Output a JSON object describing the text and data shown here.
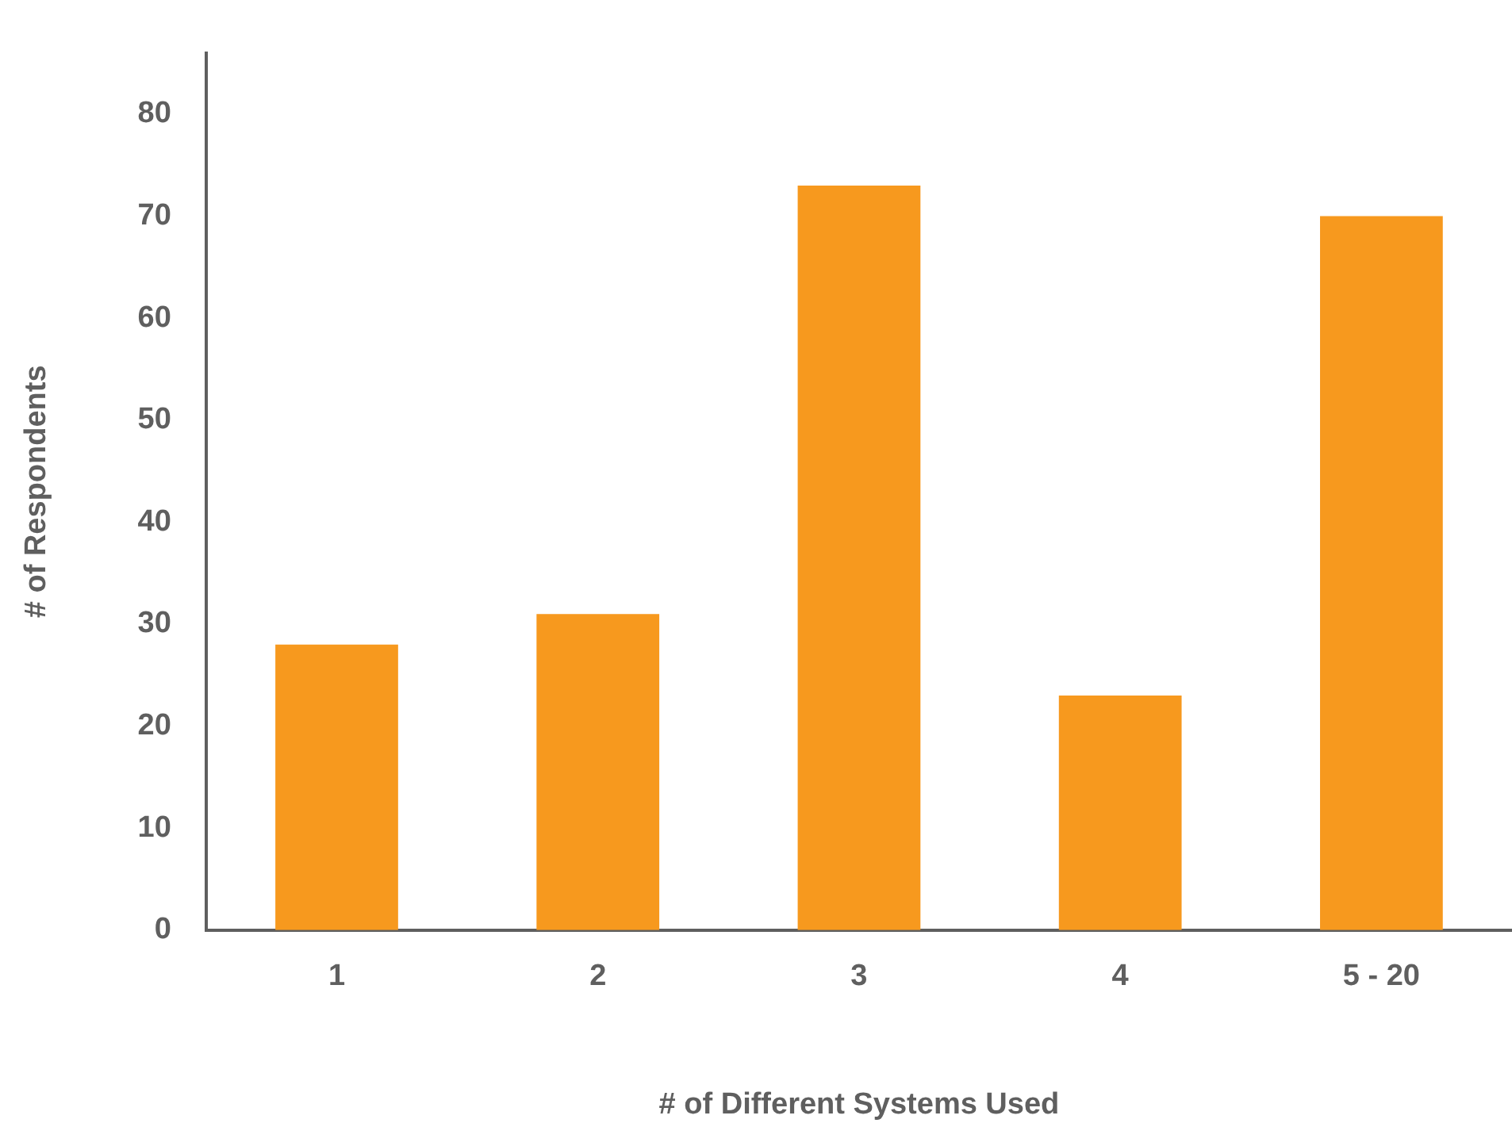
{
  "chart_data": {
    "type": "bar",
    "xlabel": "# of Different Systems Used",
    "ylabel": "# of Respondents",
    "categories": [
      "1",
      "2",
      "3",
      "4",
      "5 - 20"
    ],
    "values": [
      28,
      31,
      73,
      23,
      70
    ],
    "color": "#f7991e",
    "ylim": [
      0,
      86
    ],
    "yticks": [
      0,
      10,
      20,
      30,
      40,
      50,
      60,
      70,
      80
    ],
    "grid": false,
    "legend": false
  }
}
